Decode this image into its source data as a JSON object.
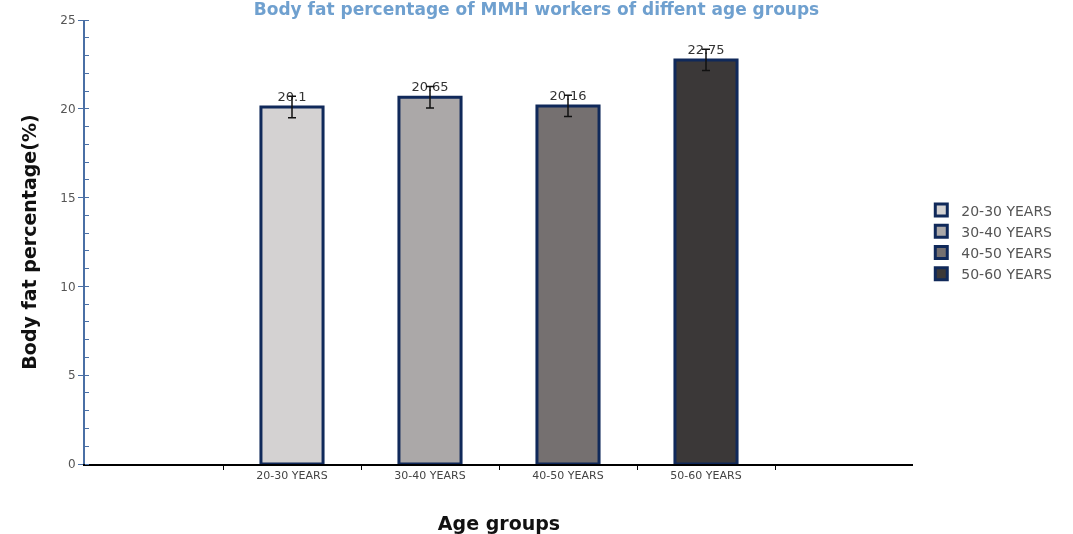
{
  "chart_data": {
    "type": "bar",
    "title": "Body fat percentage of MMH workers of diffent age groups",
    "xlabel": "Age groups",
    "ylabel": "Body fat percentage(%)",
    "categories": [
      null,
      "20-30 YEARS",
      "30-40 YEARS",
      "40-50 YEARS",
      "50-60 YEARS",
      null
    ],
    "series": [
      {
        "name": "20-30 YEARS",
        "color": "#d4d2d2",
        "values": [
          null,
          20.1,
          null,
          null,
          null,
          null
        ],
        "errors": [
          null,
          0.6,
          null,
          null,
          null,
          null
        ]
      },
      {
        "name": "30-40 YEARS",
        "color": "#aba8a8",
        "values": [
          null,
          null,
          20.65,
          null,
          null,
          null
        ],
        "errors": [
          null,
          null,
          0.6,
          null,
          null,
          null
        ]
      },
      {
        "name": "40-50 YEARS",
        "color": "#757070",
        "values": [
          null,
          null,
          null,
          20.16,
          null,
          null
        ],
        "errors": [
          null,
          null,
          null,
          0.6,
          null,
          null
        ]
      },
      {
        "name": "50-60 YEARS",
        "color": "#3b3838",
        "values": [
          null,
          null,
          null,
          null,
          22.75,
          null
        ],
        "errors": [
          null,
          null,
          null,
          null,
          0.6,
          null
        ]
      }
    ],
    "ylim": [
      0,
      25
    ],
    "yticks": [
      0,
      5,
      10,
      15,
      20,
      25
    ],
    "grid": false,
    "legend": "right",
    "data_labels": true
  }
}
